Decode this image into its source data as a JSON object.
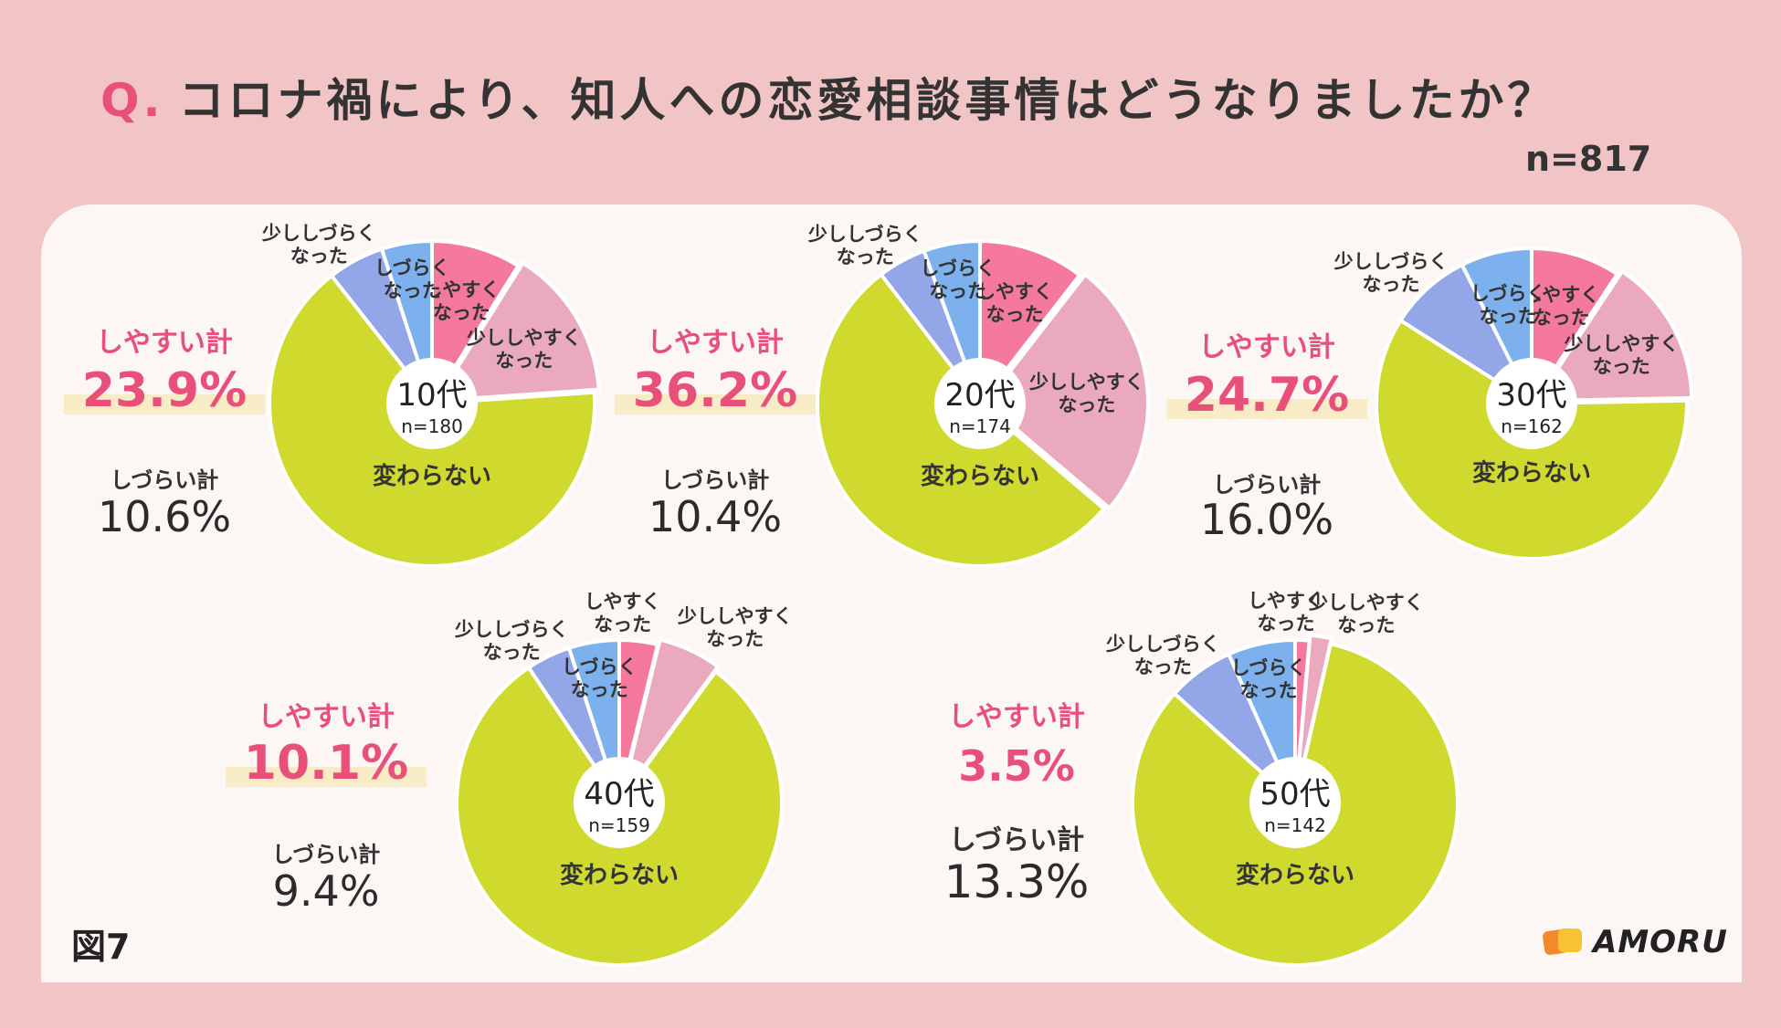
{
  "header": {
    "q_mark": "Q.",
    "question": "コロナ禍により、知人への恋愛相談事情はどうなりましたか？",
    "n_total": "n=817"
  },
  "figure_label": "図7",
  "brand": "AMORU",
  "colors": {
    "しやすくなった": "#f4799c",
    "少ししやすくなった": "#eaa9bc",
    "変わらない": "#cfd92e",
    "少ししづらくなった": "#92a6e8",
    "しづらくなった": "#7db1ee",
    "accent": "#e8507a",
    "background": "#f1c4c6",
    "panel": "#fcf7f4"
  },
  "chart_data": [
    {
      "type": "pie",
      "title": "10代",
      "n": "n=180",
      "categories": [
        "しやすくなった",
        "少ししやすくなった",
        "変わらない",
        "少ししづらくなった",
        "しづらくなった"
      ],
      "labels": [
        "しやすく\nなった",
        "少ししやすく\nなった",
        "変わらない",
        "少ししづらく\nなった",
        "しづらく\nなった"
      ],
      "values": [
        8.9,
        15.0,
        65.5,
        5.6,
        5.0
      ],
      "summary": {
        "easy_label": "しやすい計",
        "easy_value": "23.9%",
        "hard_label": "しづらい計",
        "hard_value": "10.6%"
      }
    },
    {
      "type": "pie",
      "title": "20代",
      "n": "n=174",
      "categories": [
        "しやすくなった",
        "少ししやすくなった",
        "変わらない",
        "少ししづらくなった",
        "しづらくなった"
      ],
      "labels": [
        "しやすく\nなった",
        "少ししやすく\nなった",
        "変わらない",
        "少ししづらく\nなった",
        "しづらく\nなった"
      ],
      "values": [
        10.5,
        25.7,
        53.4,
        4.8,
        5.6
      ],
      "summary": {
        "easy_label": "しやすい計",
        "easy_value": "36.2%",
        "hard_label": "しづらい計",
        "hard_value": "10.4%"
      }
    },
    {
      "type": "pie",
      "title": "30代",
      "n": "n=162",
      "categories": [
        "しやすくなった",
        "少ししやすくなった",
        "変わらない",
        "少ししづらくなった",
        "しづらくなった"
      ],
      "labels": [
        "しやすく\nなった",
        "少ししやすく\nなった",
        "変わらない",
        "少ししづらく\nなった",
        "しづらく\nなった"
      ],
      "values": [
        9.3,
        15.4,
        59.3,
        8.6,
        7.4
      ],
      "summary": {
        "easy_label": "しやすい計",
        "easy_value": "24.7%",
        "hard_label": "しづらい計",
        "hard_value": "16.0%"
      }
    },
    {
      "type": "pie",
      "title": "40代",
      "n": "n=159",
      "categories": [
        "しやすくなった",
        "少ししやすくなった",
        "変わらない",
        "少ししづらくなった",
        "しづらくなった"
      ],
      "labels": [
        "しやすく\nなった",
        "少ししやすく\nなった",
        "変わらない",
        "少ししづらく\nなった",
        "しづらく\nなった"
      ],
      "values": [
        3.8,
        6.3,
        80.5,
        4.4,
        5.0
      ],
      "summary": {
        "easy_label": "しやすい計",
        "easy_value": "10.1%",
        "hard_label": "しづらい計",
        "hard_value": "9.4%"
      }
    },
    {
      "type": "pie",
      "title": "50代",
      "n": "n=142",
      "categories": [
        "しやすくなった",
        "少ししやすくなった",
        "変わらない",
        "少ししづらくなった",
        "しづらくなった"
      ],
      "labels": [
        "しやすく\nなった",
        "少ししやすく\nなった",
        "変わらない",
        "少ししづらく\nなった",
        "しづらく\nなった"
      ],
      "values": [
        1.4,
        2.1,
        83.2,
        6.6,
        6.7
      ],
      "summary": {
        "easy_label": "しやすい計",
        "easy_value": "3.5%",
        "hard_label": "しづらい計",
        "hard_value": "13.3%"
      }
    }
  ]
}
